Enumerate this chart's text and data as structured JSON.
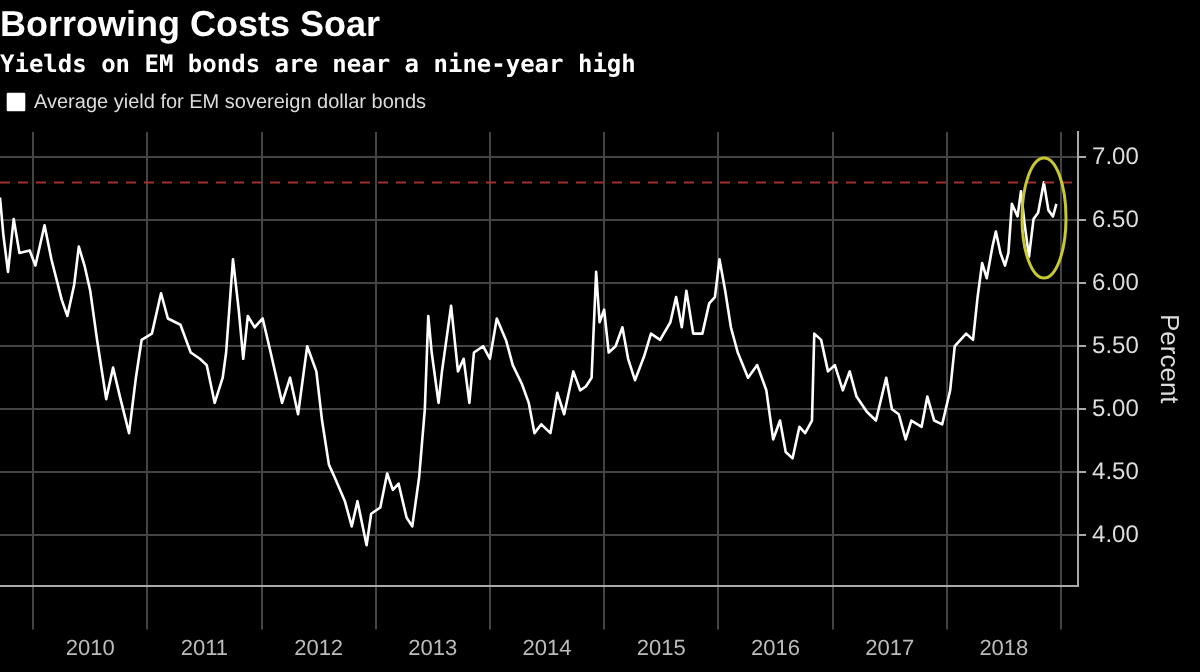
{
  "chart_data": {
    "type": "line",
    "title": "Borrowing Costs Soar",
    "subtitle": "Yields on EM bonds are near a nine-year high",
    "ylabel": "Percent",
    "xlim": [
      2009.71,
      2019.15
    ],
    "xticks": [
      {
        "value": 2010,
        "label": null
      },
      {
        "value": 2010.5,
        "label": "2010"
      },
      {
        "value": 2011,
        "label": null
      },
      {
        "value": 2011.5,
        "label": "2011"
      },
      {
        "value": 2012,
        "label": null
      },
      {
        "value": 2012.5,
        "label": "2012"
      },
      {
        "value": 2013,
        "label": null
      },
      {
        "value": 2013.5,
        "label": "2013"
      },
      {
        "value": 2014,
        "label": null
      },
      {
        "value": 2014.5,
        "label": "2014"
      },
      {
        "value": 2015,
        "label": null
      },
      {
        "value": 2015.5,
        "label": "2015"
      },
      {
        "value": 2016,
        "label": null
      },
      {
        "value": 2016.5,
        "label": "2016"
      },
      {
        "value": 2017,
        "label": null
      },
      {
        "value": 2017.5,
        "label": "2017"
      },
      {
        "value": 2018,
        "label": null
      },
      {
        "value": 2018.5,
        "label": "2018"
      },
      {
        "value": 2019,
        "label": null
      }
    ],
    "ylim": [
      3.6,
      7.2
    ],
    "yticks": [
      {
        "value": 4,
        "label": "4.00"
      },
      {
        "value": 4.5,
        "label": "4.50"
      },
      {
        "value": 5,
        "label": "5.00"
      },
      {
        "value": 5.5,
        "label": "5.50"
      },
      {
        "value": 6,
        "label": "6.00"
      },
      {
        "value": 6.5,
        "label": "6.50"
      },
      {
        "value": 7,
        "label": "7.00"
      }
    ],
    "grid": true,
    "legend": "top left",
    "marker": "none",
    "ref_lines": [
      {
        "axis": "y",
        "value": 6.8,
        "color": "#a03030",
        "line_style": "dashed"
      }
    ],
    "series": [
      {
        "name": "Average yield for EM sovereign dollar bonds",
        "color": "#ffffff",
        "x": [
          2009.71,
          2009.74,
          2009.78,
          2009.83,
          2009.88,
          2009.97,
          2010.02,
          2010.1,
          2010.16,
          2010.25,
          2010.3,
          2010.36,
          2010.4,
          2010.45,
          2010.5,
          2010.56,
          2010.64,
          2010.7,
          2010.76,
          2010.84,
          2010.9,
          2010.95,
          2011.04,
          2011.12,
          2011.18,
          2011.29,
          2011.38,
          2011.46,
          2011.52,
          2011.59,
          2011.66,
          2011.69,
          2011.75,
          2011.8,
          2011.84,
          2011.88,
          2011.94,
          2012.01,
          2012.08,
          2012.18,
          2012.25,
          2012.32,
          2012.4,
          2012.48,
          2012.53,
          2012.59,
          2012.64,
          2012.73,
          2012.79,
          2012.84,
          2012.92,
          2012.96,
          2013.04,
          2013.1,
          2013.15,
          2013.2,
          2013.27,
          2013.32,
          2013.38,
          2013.43,
          2013.46,
          2013.49,
          2013.55,
          2013.58,
          2013.66,
          2013.72,
          2013.77,
          2013.82,
          2013.86,
          2013.94,
          2014.0,
          2014.06,
          2014.14,
          2014.2,
          2014.28,
          2014.34,
          2014.39,
          2014.45,
          2014.53,
          2014.59,
          2014.65,
          2014.73,
          2014.79,
          2014.84,
          2014.89,
          2014.93,
          2014.96,
          2015.0,
          2015.04,
          2015.1,
          2015.16,
          2015.21,
          2015.27,
          2015.35,
          2015.41,
          2015.49,
          2015.58,
          2015.63,
          2015.68,
          2015.72,
          2015.78,
          2015.86,
          2015.92,
          2015.97,
          2016.01,
          2016.06,
          2016.11,
          2016.17,
          2016.26,
          2016.34,
          2016.42,
          2016.48,
          2016.54,
          2016.59,
          2016.65,
          2016.71,
          2016.76,
          2016.82,
          2016.84,
          2016.9,
          2016.96,
          2017.02,
          2017.09,
          2017.15,
          2017.21,
          2017.3,
          2017.38,
          2017.47,
          2017.52,
          2017.58,
          2017.64,
          2017.69,
          2017.78,
          2017.83,
          2017.89,
          2017.96,
          2018.03,
          2018.07,
          2018.12,
          2018.17,
          2018.23,
          2018.27,
          2018.31,
          2018.35,
          2018.4,
          2018.43,
          2018.47,
          2018.51,
          2018.54,
          2018.57,
          2018.62,
          2018.65,
          2018.68,
          2018.72,
          2018.76,
          2018.8,
          2018.85,
          2018.89,
          2018.93,
          2018.96
        ],
        "values": [
          6.68,
          6.38,
          6.09,
          6.51,
          6.24,
          6.26,
          6.14,
          6.46,
          6.19,
          5.87,
          5.74,
          5.99,
          6.29,
          6.14,
          5.94,
          5.55,
          5.08,
          5.33,
          5.1,
          4.81,
          5.25,
          5.55,
          5.6,
          5.92,
          5.72,
          5.67,
          5.45,
          5.4,
          5.35,
          5.05,
          5.25,
          5.45,
          6.19,
          5.79,
          5.4,
          5.74,
          5.65,
          5.72,
          5.45,
          5.05,
          5.25,
          4.96,
          5.5,
          5.3,
          4.91,
          4.56,
          4.46,
          4.27,
          4.07,
          4.27,
          3.92,
          4.17,
          4.22,
          4.49,
          4.36,
          4.41,
          4.14,
          4.07,
          4.46,
          5.0,
          5.74,
          5.45,
          5.05,
          5.3,
          5.82,
          5.3,
          5.4,
          5.05,
          5.45,
          5.5,
          5.4,
          5.72,
          5.55,
          5.35,
          5.2,
          5.05,
          4.81,
          4.88,
          4.81,
          5.13,
          4.96,
          5.3,
          5.15,
          5.18,
          5.25,
          6.09,
          5.69,
          5.79,
          5.45,
          5.5,
          5.65,
          5.4,
          5.23,
          5.42,
          5.6,
          5.55,
          5.69,
          5.89,
          5.65,
          5.94,
          5.6,
          5.6,
          5.84,
          5.89,
          6.19,
          5.94,
          5.65,
          5.45,
          5.25,
          5.35,
          5.15,
          4.76,
          4.91,
          4.66,
          4.61,
          4.86,
          4.81,
          4.91,
          5.6,
          5.55,
          5.3,
          5.35,
          5.15,
          5.3,
          5.1,
          4.98,
          4.91,
          5.25,
          5.0,
          4.96,
          4.76,
          4.91,
          4.86,
          5.1,
          4.91,
          4.88,
          5.15,
          5.5,
          5.55,
          5.6,
          5.55,
          5.89,
          6.16,
          6.04,
          6.29,
          6.41,
          6.24,
          6.14,
          6.24,
          6.63,
          6.53,
          6.73,
          6.48,
          6.21,
          6.51,
          6.56,
          6.8,
          6.58,
          6.53,
          6.63
        ]
      }
    ]
  }
}
